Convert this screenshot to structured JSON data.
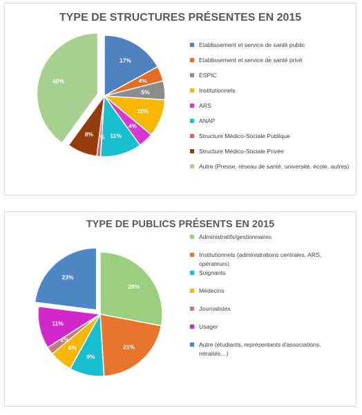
{
  "chart_data": [
    {
      "type": "pie",
      "title": "TYPE DE STRUCTURES PRÉSENTES EN 2015",
      "unit": "%",
      "legend_position": "right",
      "slices": [
        {
          "label": "Etablissement et service de santé public",
          "value": 17,
          "display": "17%",
          "color": "#4f81bd"
        },
        {
          "label": "Etablissement et service de santé privé",
          "value": 4,
          "display": "4%",
          "color": "#e46c24"
        },
        {
          "label": "ESPIC",
          "value": 5,
          "display": "5%",
          "color": "#8c8c8c"
        },
        {
          "label": "Institutionnels",
          "value": 10,
          "display": "10%",
          "color": "#f7b704"
        },
        {
          "label": "ARS",
          "value": 4,
          "display": "4%",
          "color": "#d936d2"
        },
        {
          "label": "ANAP",
          "value": 11,
          "display": "11%",
          "color": "#18bfd0"
        },
        {
          "label": "Structure Médico-Sociale Publique",
          "value": 1,
          "display": "1%",
          "color": "#d06b6b"
        },
        {
          "label": "Structure Médico-Sociale Privée",
          "value": 8,
          "display": "8%",
          "color": "#963c0c"
        },
        {
          "label": "Autre (Presse, réseau de santé, université, école, autres)",
          "value": 40,
          "display": "40%",
          "color": "#a7cf8e"
        }
      ]
    },
    {
      "type": "pie",
      "title": "TYPE DE PUBLICS PRÉSENTS EN 2015",
      "unit": "%",
      "legend_position": "right",
      "slices": [
        {
          "label": "Administratifs/gestionnaires",
          "value": 28,
          "display": "28%",
          "color": "#9bcd7e"
        },
        {
          "label": "Institutionnels (administrations centrales, ARS, opérateurs)",
          "value": 21,
          "display": "21%",
          "color": "#e9752d"
        },
        {
          "label": "Soignants",
          "value": 9,
          "display": "9%",
          "color": "#18bfd0"
        },
        {
          "label": "Médecins",
          "value": 6,
          "display": "6%",
          "color": "#f7b704"
        },
        {
          "label": "Journalistes",
          "value": 2,
          "display": "2%",
          "color": "#c47a7a"
        },
        {
          "label": "Usager",
          "value": 11,
          "display": "11%",
          "color": "#d327ce"
        },
        {
          "label": "Autre (étudiants, représentants d'associations, retraités…)",
          "value": 23,
          "display": "23%",
          "color": "#4f86c6"
        }
      ]
    }
  ]
}
